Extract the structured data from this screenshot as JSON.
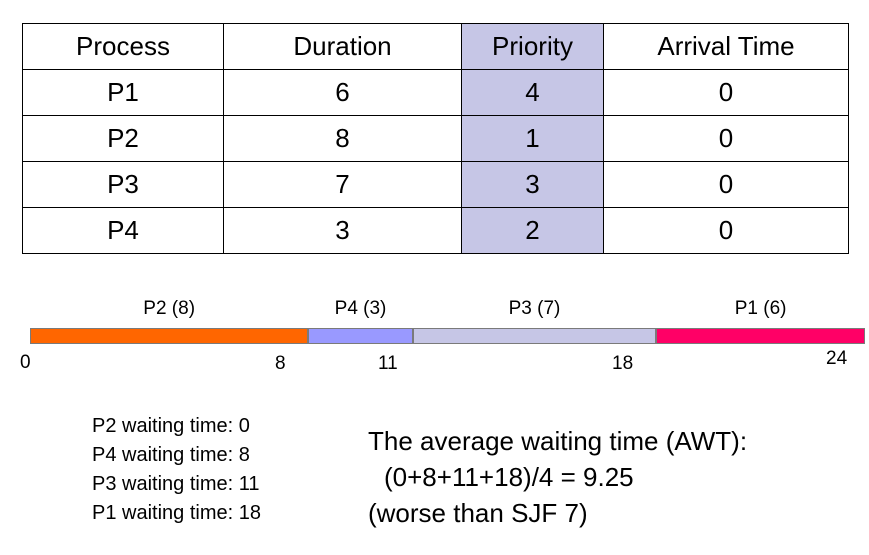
{
  "table": {
    "headers": [
      "Process",
      "Duration",
      "Priority",
      "Arrival Time"
    ],
    "rows": [
      [
        "P1",
        "6",
        "4",
        "0"
      ],
      [
        "P2",
        "8",
        "1",
        "0"
      ],
      [
        "P3",
        "7",
        "3",
        "0"
      ],
      [
        "P4",
        "3",
        "2",
        "0"
      ]
    ],
    "highlight_color": "#c6c6e6"
  },
  "gantt": {
    "total": 24,
    "segments": [
      {
        "label": "P2 (8)",
        "start": 0,
        "end": 8,
        "color": "#ff6600"
      },
      {
        "label": "P4 (3)",
        "start": 8,
        "end": 11,
        "color": "#9999ff"
      },
      {
        "label": "P3 (7)",
        "start": 11,
        "end": 18,
        "color": "#c6c6e6"
      },
      {
        "label": "P1 (6)",
        "start": 18,
        "end": 24,
        "color": "#ff0066"
      }
    ],
    "ticks": [
      "0",
      "8",
      "11",
      "18",
      "24"
    ]
  },
  "waiting_times": [
    "P2 waiting time: 0",
    "P4 waiting time: 8",
    "P3 waiting time: 11",
    "P1 waiting time: 18"
  ],
  "awt": {
    "line1": "The average waiting time (AWT):",
    "line2": "(0+8+11+18)/4 = 9.25",
    "line3": "(worse than SJF 7)"
  }
}
